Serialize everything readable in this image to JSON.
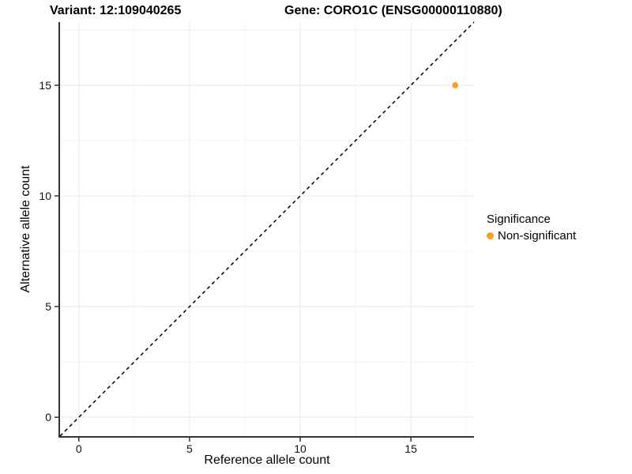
{
  "header": {
    "variant_title": "Variant: 12:109040265",
    "gene_title": "Gene: CORO1C (ENSG00000110880)"
  },
  "chart_data": {
    "type": "scatter",
    "xlabel": "Reference allele count",
    "ylabel": "Alternative allele count",
    "xlim": [
      -0.85,
      17.85
    ],
    "ylim": [
      -0.85,
      17.85
    ],
    "x_ticks": [
      0,
      5,
      10,
      15
    ],
    "y_ticks": [
      0,
      5,
      10,
      15
    ],
    "minor_gridlines": [
      2.5,
      7.5,
      12.5,
      17.5
    ],
    "grid": "major+minor",
    "legend_title": "Significance",
    "legend_position": "right",
    "series": [
      {
        "name": "Non-significant",
        "color": "#FF9E1B",
        "points": [
          {
            "x": 17,
            "y": 15
          }
        ]
      }
    ],
    "reference_line": {
      "type": "identity y=x",
      "style": "dashed",
      "color": "#000000"
    },
    "colors": {
      "background": "#ffffff",
      "axis_line": "#333333",
      "tick_mark": "#333333",
      "grid_major": "#e8e8e8",
      "grid_minor": "#f4f4f4",
      "text": "#000000"
    }
  }
}
